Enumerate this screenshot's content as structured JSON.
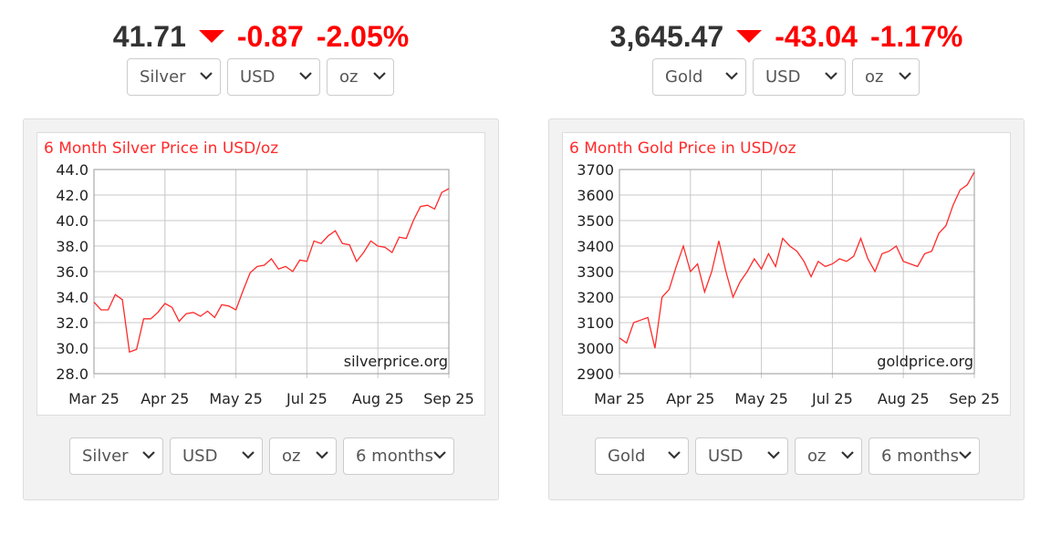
{
  "quotes": [
    {
      "price": "41.71",
      "change": "-0.87",
      "change_pct": "-2.05%",
      "selects": [
        "Silver",
        "USD",
        "oz"
      ],
      "controls": [
        "Silver",
        "USD",
        "oz",
        "6 months"
      ]
    },
    {
      "price": "3,645.47",
      "change": "-43.04",
      "change_pct": "-1.17%",
      "selects": [
        "Gold",
        "USD",
        "oz"
      ],
      "controls": [
        "Gold",
        "USD",
        "oz",
        "6 months"
      ]
    }
  ],
  "chart_data": [
    {
      "type": "line",
      "title": "6 Month Silver Price in USD/oz",
      "annotation": "silverprice.org",
      "x": [
        0,
        1,
        2,
        3,
        4,
        5,
        6,
        7,
        8,
        9,
        10,
        11,
        12,
        13,
        14,
        15,
        16,
        17,
        18,
        19,
        20,
        21,
        22,
        23,
        24,
        25,
        26,
        27,
        28,
        29,
        30,
        31,
        32,
        33,
        34,
        35,
        36,
        37,
        38,
        39,
        40,
        41,
        42,
        43,
        44,
        45,
        46,
        47,
        48,
        49,
        50
      ],
      "series": [
        {
          "color": "#ff2a2a",
          "values": [
            33.6,
            33.0,
            33.0,
            34.2,
            33.8,
            29.7,
            29.9,
            32.3,
            32.3,
            32.8,
            33.5,
            33.2,
            32.1,
            32.7,
            32.8,
            32.5,
            32.9,
            32.4,
            33.4,
            33.3,
            33.0,
            34.5,
            35.9,
            36.4,
            36.5,
            37.0,
            36.2,
            36.4,
            36.0,
            36.9,
            36.8,
            38.4,
            38.2,
            38.8,
            39.2,
            38.2,
            38.1,
            36.8,
            37.5,
            38.4,
            38.0,
            37.9,
            37.5,
            38.7,
            38.6,
            40.0,
            41.1,
            41.2,
            40.9,
            42.2,
            42.5
          ]
        }
      ],
      "xlim": [
        0,
        50
      ],
      "xticks": [
        {
          "value": 0,
          "label": "Mar 25"
        },
        {
          "value": 10,
          "label": "Apr 25"
        },
        {
          "value": 20,
          "label": "May 25"
        },
        {
          "value": 30,
          "label": "Jul 25"
        },
        {
          "value": 40,
          "label": "Aug 25"
        },
        {
          "value": 50,
          "label": "Sep 25"
        }
      ],
      "ylim": [
        28,
        44
      ],
      "yticks": [
        {
          "value": 28,
          "label": "28.0"
        },
        {
          "value": 30,
          "label": "30.0"
        },
        {
          "value": 32,
          "label": "32.0"
        },
        {
          "value": 34,
          "label": "34.0"
        },
        {
          "value": 36,
          "label": "36.0"
        },
        {
          "value": 38,
          "label": "38.0"
        },
        {
          "value": 40,
          "label": "40.0"
        },
        {
          "value": 42,
          "label": "42.0"
        },
        {
          "value": 44,
          "label": "44.0"
        }
      ],
      "grid": true
    },
    {
      "type": "line",
      "title": "6 Month Gold Price in USD/oz",
      "annotation": "goldprice.org",
      "x": [
        0,
        1,
        2,
        3,
        4,
        5,
        6,
        7,
        8,
        9,
        10,
        11,
        12,
        13,
        14,
        15,
        16,
        17,
        18,
        19,
        20,
        21,
        22,
        23,
        24,
        25,
        26,
        27,
        28,
        29,
        30,
        31,
        32,
        33,
        34,
        35,
        36,
        37,
        38,
        39,
        40,
        41,
        42,
        43,
        44,
        45,
        46,
        47,
        48,
        49,
        50
      ],
      "series": [
        {
          "color": "#ff2a2a",
          "values": [
            3040,
            3020,
            3100,
            3110,
            3120,
            3000,
            3200,
            3230,
            3320,
            3400,
            3300,
            3330,
            3220,
            3300,
            3420,
            3300,
            3200,
            3260,
            3300,
            3350,
            3310,
            3370,
            3320,
            3430,
            3400,
            3380,
            3340,
            3280,
            3340,
            3320,
            3330,
            3350,
            3340,
            3360,
            3430,
            3350,
            3300,
            3370,
            3380,
            3400,
            3340,
            3330,
            3320,
            3370,
            3380,
            3450,
            3480,
            3560,
            3620,
            3640,
            3690
          ]
        }
      ],
      "xlim": [
        0,
        50
      ],
      "xticks": [
        {
          "value": 0,
          "label": "Mar 25"
        },
        {
          "value": 10,
          "label": "Apr 25"
        },
        {
          "value": 20,
          "label": "May 25"
        },
        {
          "value": 30,
          "label": "Jul 25"
        },
        {
          "value": 40,
          "label": "Aug 25"
        },
        {
          "value": 50,
          "label": "Sep 25"
        }
      ],
      "ylim": [
        2900,
        3700
      ],
      "yticks": [
        2900,
        3000,
        3100,
        3200,
        3300,
        3400,
        3500,
        3600,
        3700
      ],
      "grid": true
    }
  ]
}
